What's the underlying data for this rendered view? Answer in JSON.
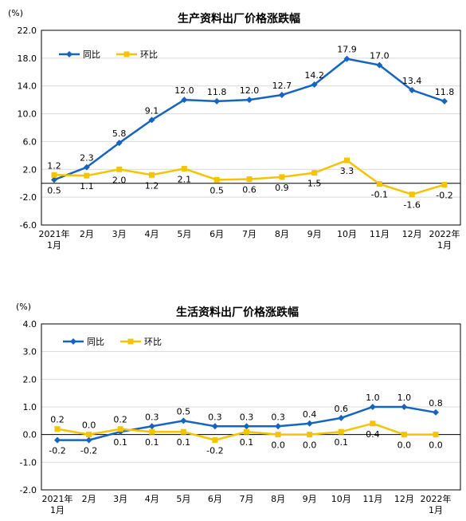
{
  "chart_data": [
    {
      "type": "line",
      "title": "生产资料出厂价格涨跌幅",
      "unit": "(%)",
      "ylim": [
        -6.0,
        22.0
      ],
      "yticks": [
        "22.0",
        "18.0",
        "14.0",
        "10.0",
        "6.0",
        "2.0",
        "-2.0",
        "-6.0"
      ],
      "ytick_values": [
        22,
        18,
        14,
        10,
        6,
        2,
        -2,
        -6
      ],
      "categories": [
        "2021年|1月",
        "2月",
        "3月",
        "4月",
        "5月",
        "6月",
        "7月",
        "8月",
        "9月",
        "10月",
        "11月",
        "12月",
        "2022年|1月"
      ],
      "legend_position": "top-left",
      "series": [
        {
          "name": "同比",
          "color": "#1565c0",
          "marker": "diamond",
          "values": [
            0.5,
            2.3,
            5.8,
            9.1,
            12.0,
            11.8,
            12.0,
            12.7,
            14.2,
            17.9,
            17.0,
            13.4,
            11.8
          ],
          "labels": [
            "0.5",
            "2.3",
            "5.8",
            "9.1",
            "12.0",
            "11.8",
            "12.0",
            "12.7",
            "14.2",
            "17.9",
            "17.0",
            "13.4",
            "11.8"
          ],
          "label_pos": [
            "below",
            "above",
            "above",
            "above",
            "above",
            "above",
            "above",
            "above",
            "above",
            "above",
            "above",
            "above",
            "above"
          ]
        },
        {
          "name": "环比",
          "color": "#f5c400",
          "marker": "square",
          "values": [
            1.2,
            1.1,
            2.0,
            1.2,
            2.1,
            0.5,
            0.6,
            0.9,
            1.5,
            3.3,
            -0.1,
            -1.6,
            -0.2
          ],
          "labels": [
            "1.2",
            "1.1",
            "2.0",
            "1.2",
            "2.1",
            "0.5",
            "0.6",
            "0.9",
            "1.5",
            "3.3",
            "-0.1",
            "-1.6",
            "-0.2"
          ],
          "label_pos": [
            "above",
            "below",
            "below",
            "below",
            "below",
            "below",
            "below",
            "below",
            "below",
            "below",
            "below",
            "below",
            "below"
          ]
        }
      ]
    },
    {
      "type": "line",
      "title": "生活资料出厂价格涨跌幅",
      "unit": "(%)",
      "ylim": [
        -2.0,
        4.0
      ],
      "yticks": [
        "4.0",
        "3.0",
        "2.0",
        "1.0",
        "0.0",
        "-1.0",
        "-2.0"
      ],
      "ytick_values": [
        4,
        3,
        2,
        1,
        0,
        -1,
        -2
      ],
      "categories": [
        "2021年|1月",
        "2月",
        "3月",
        "4月",
        "5月",
        "6月",
        "7月",
        "8月",
        "9月",
        "10月",
        "11月",
        "12月",
        "2022年|1月"
      ],
      "legend_position": "top-left",
      "series": [
        {
          "name": "同比",
          "color": "#1565c0",
          "marker": "diamond",
          "values": [
            -0.2,
            -0.2,
            0.1,
            0.3,
            0.5,
            0.3,
            0.3,
            0.3,
            0.4,
            0.6,
            1.0,
            1.0,
            0.8
          ],
          "labels": [
            "-0.2",
            "-0.2",
            "0.1",
            "0.3",
            "0.5",
            "0.3",
            "0.3",
            "0.3",
            "0.4",
            "0.6",
            "1.0",
            "1.0",
            "0.8"
          ],
          "label_pos": [
            "below",
            "below",
            "below",
            "above",
            "above",
            "above",
            "above",
            "above",
            "above",
            "above",
            "above",
            "above",
            "above"
          ]
        },
        {
          "name": "环比",
          "color": "#f5c400",
          "marker": "square",
          "values": [
            0.2,
            0.0,
            0.2,
            0.1,
            0.1,
            -0.2,
            0.1,
            0.0,
            0.0,
            0.1,
            0.4,
            0.0,
            0.0
          ],
          "labels": [
            "0.2",
            "0.0",
            "0.2",
            "0.1",
            "0.1",
            "-0.2",
            "0.1",
            "0.0",
            "0.0",
            "0.1",
            "0.4",
            "0.0",
            "0.0"
          ],
          "label_pos": [
            "above",
            "above",
            "above",
            "below",
            "below",
            "below",
            "below",
            "below",
            "below",
            "below",
            "below",
            "below",
            "below"
          ]
        }
      ]
    }
  ]
}
